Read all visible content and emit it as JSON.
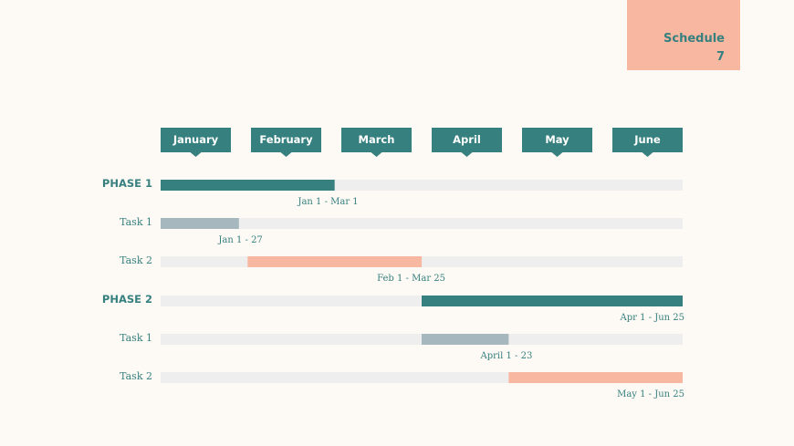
{
  "badge": {
    "line1": "Schedule",
    "line2": "7"
  },
  "colors": {
    "teal": "#36807f",
    "gray": "#a6b7bd",
    "salmon": "#f8b7a1",
    "track": "#eeeeee",
    "background": "#fdf9f4"
  },
  "chart_data": {
    "type": "bar",
    "categories": [
      "January",
      "February",
      "March",
      "April",
      "May",
      "June"
    ],
    "rows": [
      {
        "label": "PHASE 1",
        "kind": "phase",
        "start": 0,
        "end": 2,
        "range": "Jan 1 - Mar 1",
        "color": "#36807f"
      },
      {
        "label": "Task 1",
        "kind": "task",
        "start": 0,
        "end": 0.9,
        "range": "Jan 1 - 27",
        "color": "#a6b7bd"
      },
      {
        "label": "Task 2",
        "kind": "task",
        "start": 1,
        "end": 3,
        "range": "Feb 1 - Mar 25",
        "color": "#f8b7a1"
      },
      {
        "label": "PHASE 2",
        "kind": "phase",
        "start": 3,
        "end": 6,
        "range": "Apr 1  - Jun 25",
        "color": "#36807f"
      },
      {
        "label": "Task 1",
        "kind": "task",
        "start": 3,
        "end": 4,
        "range": "April 1 - 23",
        "color": "#a6b7bd"
      },
      {
        "label": "Task 2",
        "kind": "task",
        "start": 4,
        "end": 6,
        "range": "May 1 - Jun 25",
        "color": "#f8b7a1"
      }
    ]
  }
}
